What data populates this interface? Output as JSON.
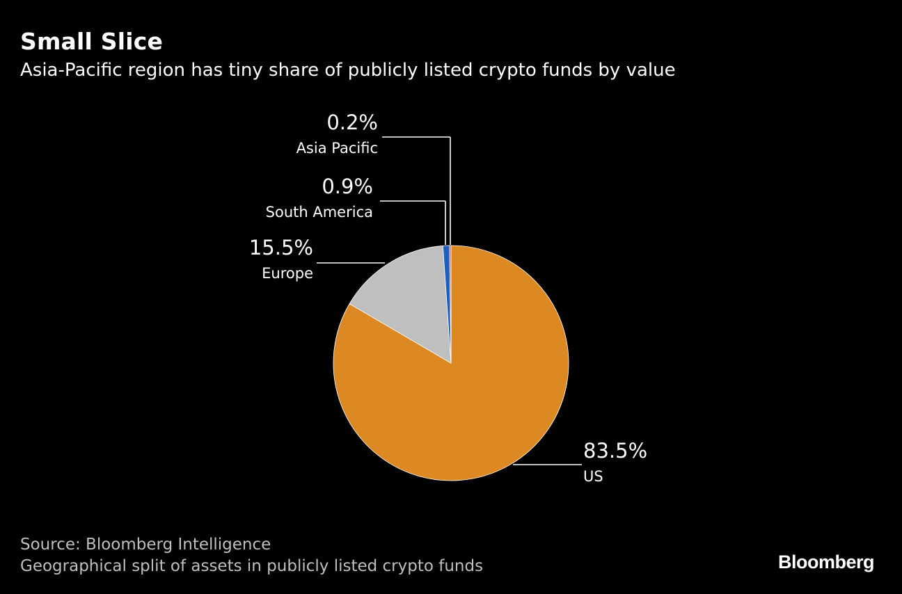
{
  "header": {
    "title": "Small Slice",
    "subtitle": "Asia-Pacific region has tiny share of publicly listed crypto funds by value"
  },
  "footer": {
    "source": "Source: Bloomberg Intelligence",
    "note": "Geographical split of assets in publicly listed crypto funds",
    "brand": "Bloomberg"
  },
  "chart_data": {
    "type": "pie",
    "title": "Small Slice",
    "subtitle": "Asia-Pacific region has tiny share of publicly listed crypto funds by value",
    "unit": "%",
    "slices": [
      {
        "label": "US",
        "value": 83.5,
        "display": "83.5%",
        "color": "#dc8923"
      },
      {
        "label": "Europe",
        "value": 15.5,
        "display": "15.5%",
        "color": "#bfbfbf"
      },
      {
        "label": "South America",
        "value": 0.9,
        "display": "0.9%",
        "color": "#1f5fbf"
      },
      {
        "label": "Asia Pacific",
        "value": 0.2,
        "display": "0.2%",
        "color": "#d9533a"
      }
    ],
    "legend": "none"
  }
}
